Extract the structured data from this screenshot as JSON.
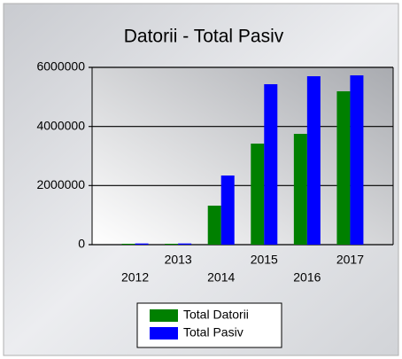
{
  "chart_data": {
    "type": "bar",
    "title": "Datorii - Total Pasiv",
    "categories": [
      "2012",
      "2013",
      "2014",
      "2015",
      "2016",
      "2017"
    ],
    "series": [
      {
        "name": "Total Datorii",
        "color": "#008000",
        "values": [
          30000,
          30000,
          1320000,
          3420000,
          3750000,
          5190000
        ]
      },
      {
        "name": "Total Pasiv",
        "color": "#0000ff",
        "values": [
          40000,
          40000,
          2340000,
          5430000,
          5700000,
          5730000
        ]
      }
    ],
    "ylim": [
      0,
      6000000
    ],
    "yticks": [
      0,
      2000000,
      4000000,
      6000000
    ],
    "grid": true,
    "legend": "bottom"
  }
}
